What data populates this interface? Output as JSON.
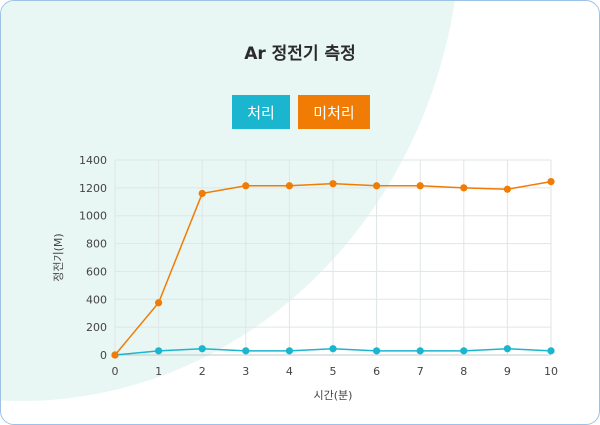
{
  "title": "Ar 정전기 측정",
  "buttons": [
    {
      "label": "처리",
      "color": "#1ab5cf"
    },
    {
      "label": "미처리",
      "color": "#f07c05"
    }
  ],
  "chart_data": {
    "type": "line",
    "title": "Ar 정전기 측정",
    "xlabel": "시간(분)",
    "ylabel": "정전기(M)",
    "x": [
      0,
      1,
      2,
      3,
      4,
      5,
      6,
      7,
      8,
      9,
      10
    ],
    "xlim": [
      0,
      10
    ],
    "ylim": [
      0,
      1400
    ],
    "yticks": [
      0,
      200,
      400,
      600,
      800,
      1000,
      1200,
      1400
    ],
    "grid": true,
    "series": [
      {
        "name": "처리",
        "color": "#1ab5cf",
        "values": [
          0,
          30,
          45,
          30,
          30,
          45,
          30,
          30,
          30,
          45,
          30
        ]
      },
      {
        "name": "미처리",
        "color": "#f07c05",
        "values": [
          0,
          375,
          1160,
          1215,
          1215,
          1230,
          1215,
          1215,
          1200,
          1190,
          1245
        ]
      }
    ]
  }
}
